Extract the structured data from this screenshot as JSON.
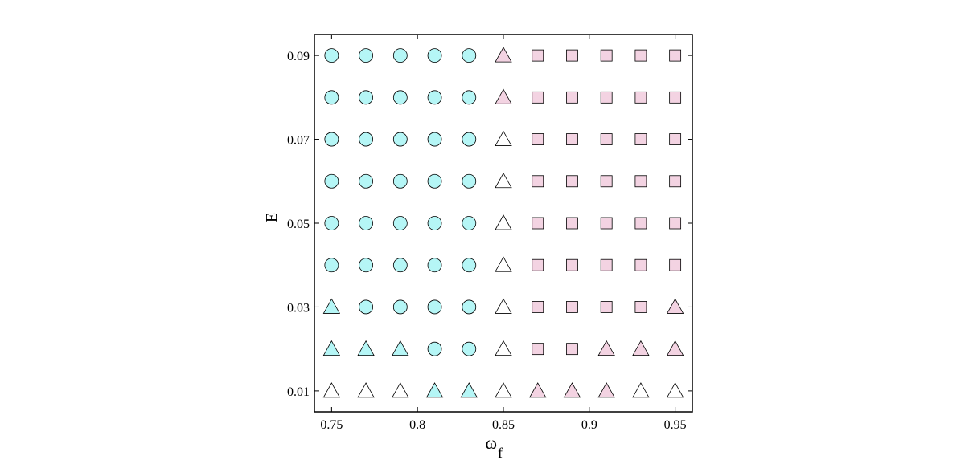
{
  "chart_data": {
    "type": "scatter",
    "xlabel": "ω",
    "xlabel_subscript": "f",
    "ylabel": "E",
    "xlim": [
      0.74,
      0.96
    ],
    "xticks": [
      0.75,
      0.8,
      0.85,
      0.9,
      0.95
    ],
    "ylim": [
      0.005,
      0.095
    ],
    "yticks": [
      0.01,
      0.03,
      0.05,
      0.07,
      0.09
    ],
    "grid": false,
    "series": [
      {
        "marker": "circle",
        "color": "#b5f6f6",
        "x": [
          0.75,
          0.77,
          0.79,
          0.81,
          0.83,
          0.75,
          0.77,
          0.79,
          0.81,
          0.83,
          0.75,
          0.77,
          0.79,
          0.81,
          0.83,
          0.75,
          0.77,
          0.79,
          0.81,
          0.83,
          0.75,
          0.77,
          0.79,
          0.81,
          0.83,
          0.75,
          0.77,
          0.79,
          0.81,
          0.83,
          0.77,
          0.79,
          0.81,
          0.83,
          0.81,
          0.83
        ],
        "y": [
          0.09,
          0.09,
          0.09,
          0.09,
          0.09,
          0.08,
          0.08,
          0.08,
          0.08,
          0.08,
          0.07,
          0.07,
          0.07,
          0.07,
          0.07,
          0.06,
          0.06,
          0.06,
          0.06,
          0.06,
          0.05,
          0.05,
          0.05,
          0.05,
          0.05,
          0.04,
          0.04,
          0.04,
          0.04,
          0.04,
          0.03,
          0.03,
          0.03,
          0.03,
          0.02,
          0.02
        ]
      },
      {
        "marker": "triangle",
        "color": "#b5f6f6",
        "x": [
          0.75,
          0.75,
          0.77,
          0.79,
          0.81,
          0.83
        ],
        "y": [
          0.03,
          0.02,
          0.02,
          0.02,
          0.01,
          0.01
        ]
      },
      {
        "marker": "triangle",
        "color": "#ffffff",
        "x": [
          0.85,
          0.85,
          0.85,
          0.85,
          0.85,
          0.85,
          0.85,
          0.75,
          0.77,
          0.79,
          0.93,
          0.95
        ],
        "y": [
          0.07,
          0.06,
          0.05,
          0.04,
          0.03,
          0.02,
          0.01,
          0.01,
          0.01,
          0.01,
          0.01,
          0.01
        ]
      },
      {
        "marker": "triangle",
        "color": "#f3d3e2",
        "x": [
          0.85,
          0.85,
          0.95,
          0.91,
          0.93,
          0.95,
          0.87,
          0.89,
          0.91
        ],
        "y": [
          0.09,
          0.08,
          0.03,
          0.02,
          0.02,
          0.02,
          0.01,
          0.01,
          0.01
        ]
      },
      {
        "marker": "square",
        "color": "#f3d3e2",
        "x": [
          0.87,
          0.89,
          0.91,
          0.93,
          0.95,
          0.87,
          0.89,
          0.91,
          0.93,
          0.95,
          0.87,
          0.89,
          0.91,
          0.93,
          0.95,
          0.87,
          0.89,
          0.91,
          0.93,
          0.95,
          0.87,
          0.89,
          0.91,
          0.93,
          0.95,
          0.87,
          0.89,
          0.91,
          0.93,
          0.95,
          0.87,
          0.89,
          0.91,
          0.93,
          0.87,
          0.89
        ],
        "y": [
          0.09,
          0.09,
          0.09,
          0.09,
          0.09,
          0.08,
          0.08,
          0.08,
          0.08,
          0.08,
          0.07,
          0.07,
          0.07,
          0.07,
          0.07,
          0.06,
          0.06,
          0.06,
          0.06,
          0.06,
          0.05,
          0.05,
          0.05,
          0.05,
          0.05,
          0.04,
          0.04,
          0.04,
          0.04,
          0.04,
          0.03,
          0.03,
          0.03,
          0.03,
          0.02,
          0.02
        ]
      }
    ]
  }
}
